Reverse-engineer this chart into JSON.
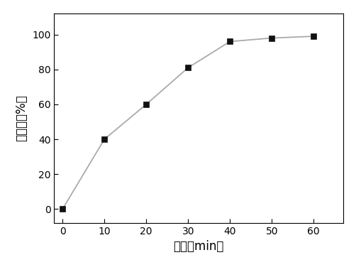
{
  "x": [
    0,
    10,
    20,
    30,
    40,
    50,
    60
  ],
  "y": [
    0,
    40,
    60,
    81,
    96,
    98,
    99
  ],
  "xlabel": "时间（min）",
  "ylabel": "降解率（%）",
  "xlim": [
    -2,
    67
  ],
  "ylim": [
    -8,
    112
  ],
  "xticks": [
    0,
    10,
    20,
    30,
    40,
    50,
    60
  ],
  "yticks": [
    0,
    20,
    40,
    60,
    80,
    100
  ],
  "line_color": "#aaaaaa",
  "marker_color": "#111111",
  "marker": "s",
  "marker_size": 6,
  "line_width": 1.3,
  "bg_color": "#ffffff",
  "font_size_label": 12,
  "font_size_tick": 10
}
